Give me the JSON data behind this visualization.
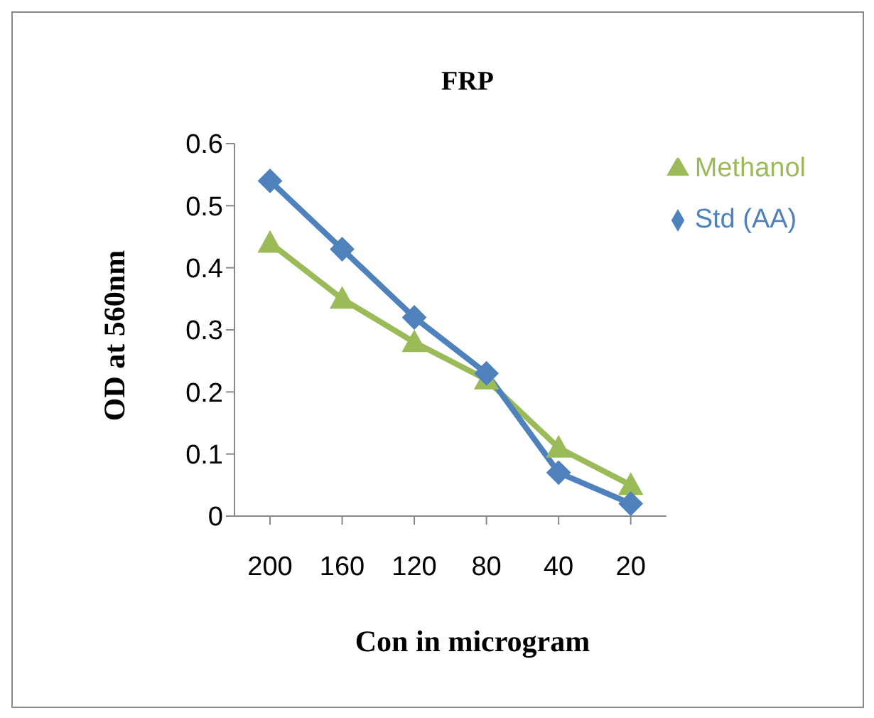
{
  "chart_data": {
    "type": "line",
    "title": "FRP",
    "xlabel": "Con in microgram",
    "ylabel": "OD at 560nm",
    "categories": [
      "200",
      "160",
      "120",
      "80",
      "40",
      "20"
    ],
    "series": [
      {
        "name": "Methanol",
        "color": "#9bbb59",
        "marker": "triangle",
        "values": [
          0.44,
          0.35,
          0.28,
          0.22,
          0.11,
          0.05
        ]
      },
      {
        "name": "Std (AA)",
        "color": "#4f81bd",
        "marker": "diamond",
        "values": [
          0.54,
          0.43,
          0.32,
          0.23,
          0.07,
          0.02
        ]
      }
    ],
    "ylim": [
      0,
      0.6
    ],
    "yticks": [
      0,
      0.1,
      0.2,
      0.3,
      0.4,
      0.5,
      0.6
    ],
    "grid": false,
    "legend": "top right"
  }
}
